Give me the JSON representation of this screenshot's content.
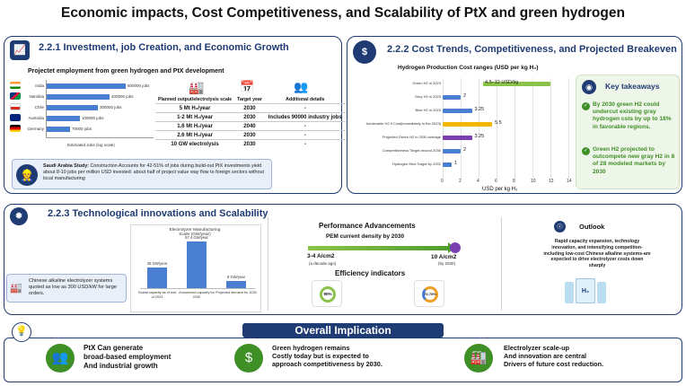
{
  "title": "Economic impacts, Cost Competitiveness, and Scalability of PtX and green hydrogen",
  "s221": {
    "title": "2.2.1 Investment, job Creation, and Economic Growth",
    "subtitle": "Projectet employment from green hydrogen and PtX development",
    "bars": [
      {
        "country": "India",
        "label": "600000 jobs",
        "frac": 1.0
      },
      {
        "country": "Namibia",
        "label": "400000 jobs",
        "frac": 0.8
      },
      {
        "country": "Chile",
        "label": "300000 jobs",
        "frac": 0.65
      },
      {
        "country": "Australia",
        "label": "100000 jobs",
        "frac": 0.42
      },
      {
        "country": "Germany",
        "label": "70000 jobs",
        "frac": 0.3
      }
    ],
    "axis_label": "Estimated Jobs (log scale)",
    "table": {
      "headers": [
        "Planned output/electrolysis scale",
        "Target year",
        "Additional details"
      ],
      "rows": [
        [
          "5 Mt H₂/year",
          "2030",
          "-"
        ],
        [
          "1-2 Mt H₂/year",
          "2030",
          "Includes 90000 industry jobs"
        ],
        [
          "1.6 Mt H₂/year",
          "2040",
          "-"
        ],
        [
          "2.6 Mt H₂/year",
          "2030",
          "-"
        ],
        [
          "10 GW electrolysis",
          "2030",
          "-"
        ]
      ]
    },
    "callout_bold": "Saudi Arabia Study:",
    "callout_text": " Construction Accounts for 42-51% of jobs during build-out PtX investments yield about 8-10 jobs per million USD invested: about half of project value way flow to foreign sectors without local manufacturing"
  },
  "s222": {
    "title": "2.2.2 Cost Trends, Competitiveness, and Projected Breakeven",
    "chart_title": "Hydrogen Production Cost ranges (USD per kg H₂)",
    "xlabel": "USD per kg H₂",
    "ticks": [
      "0",
      "2",
      "4",
      "6",
      "8",
      "10",
      "12",
      "14"
    ],
    "takeaways_title": "Key takeaways",
    "takeaway1": "By 2030 green H2 could undercut existing gray hydrogen csts by up to 18% in favorable regions.",
    "takeaway2": "Green H2 projected to outcompete new gray H2 in 8 of 28 modeled markets by 2030"
  },
  "chart_data": {
    "type": "bar",
    "orientation": "horizontal",
    "title": "Hydrogen Production Cost ranges (USD per kg H₂)",
    "xlabel": "USD per kg H₂",
    "xlim": [
      0,
      14
    ],
    "series": [
      {
        "category": "Green H2 in 2023",
        "low": 4.5,
        "high": 12,
        "label": "4.5–12 USD/kg",
        "color": "#8bc34a"
      },
      {
        "category": "Grey H2 in 2023",
        "low": 0,
        "high": 2,
        "label": "2",
        "color": "#4a7ed1"
      },
      {
        "category": "Blue H2 in 2023",
        "low": 0,
        "high": 3.25,
        "label": "3.25",
        "color": "#4a7ed1"
      },
      {
        "category": "Achievable H2 if Cost(immediately in the 2023)",
        "low": 0,
        "high": 5.5,
        "label": "5.5",
        "color": "#f2b705"
      },
      {
        "category": "Projected Green H2 in 2030 average",
        "low": 0,
        "high": 3.25,
        "label": "3.25",
        "color": "#7b3fb0"
      },
      {
        "category": "Competitiveness Target around 2030",
        "low": 0,
        "high": 2,
        "label": "2",
        "color": "#4a7ed1"
      },
      {
        "category": "Hydrogen Shot Target by 2031",
        "low": 0,
        "high": 1,
        "label": "1",
        "color": "#4a7ed1"
      }
    ]
  },
  "s223": {
    "title": "2.2.3 Technological innovations and Scalability",
    "callout": "Chinese alkaline electrolyzer systems quoted as low as 300 USD/kW for large orders.",
    "chart_title": "Electrolyzer Manufacturing Scale (GW/year)",
    "bars": [
      {
        "label": "25 GW/year",
        "value": 25,
        "cat": "Global capacity as of end of 2023"
      },
      {
        "label": "57.4 GW/year",
        "value": 57.4,
        "cat": "Announced capacity for 2030"
      },
      {
        "label": "9 GW/year",
        "value": 9,
        "cat": "Projected demand for 2030"
      }
    ],
    "perf_title": "Performance Advancements",
    "pem_title": "PEM current density by 2030",
    "pem_from": "3-4 A/cm2",
    "pem_from_sub": "(a decade ago)",
    "pem_to": "10 A/cm2",
    "pem_to_sub": "(by 2030)",
    "eff_title": "Efficiency indicators",
    "eff1": "90%",
    "eff2": "70-75%",
    "outlook_title": "Outlook",
    "outlook_text": "Rapid capacity expansion, technology innovation, and intensifying competition- including low-cost Chinese alkaline systems-are expected to drive electrolyzer costs down sharply",
    "h2_label": "H₂"
  },
  "overall": {
    "title": "Overall Implication",
    "item1": [
      "PtX Can generate",
      "broad-based employment",
      "And industrial growth"
    ],
    "item2": [
      "Green hydrogen remains",
      "Costly today but is expected to",
      "approach competitiveness by 2030."
    ],
    "item3": [
      "Electrolyzer scale-up",
      "And innovation are central",
      "Drivers of future cost reduction."
    ]
  }
}
